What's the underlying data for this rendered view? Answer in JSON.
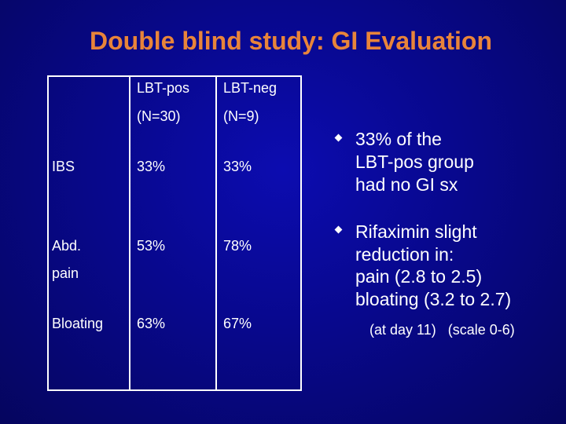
{
  "slide": {
    "title": "Double blind study: GI Evaluation"
  },
  "table": {
    "headers": [
      {
        "line1": "LBT-pos",
        "line2": "(N=30)"
      },
      {
        "line1": "LBT-neg",
        "line2": "(N=9)"
      }
    ],
    "rows": [
      {
        "label": "IBS",
        "label2": "",
        "values": [
          "33%",
          "33%"
        ]
      },
      {
        "label": "Abd.",
        "label2": "pain",
        "values": [
          "53%",
          "78%"
        ]
      },
      {
        "label": "Bloating",
        "label2": "",
        "values": [
          "63%",
          "67%"
        ]
      }
    ]
  },
  "bullets": [
    {
      "lines": [
        "33% of the",
        "LBT-pos group",
        "had no GI sx"
      ]
    },
    {
      "lines": [
        "Rifaximin slight",
        "reduction in:",
        "pain (2.8 to 2.5)",
        "bloating (3.2 to 2.7)"
      ]
    }
  ],
  "note": "(at day 11)   (scale 0-6)"
}
